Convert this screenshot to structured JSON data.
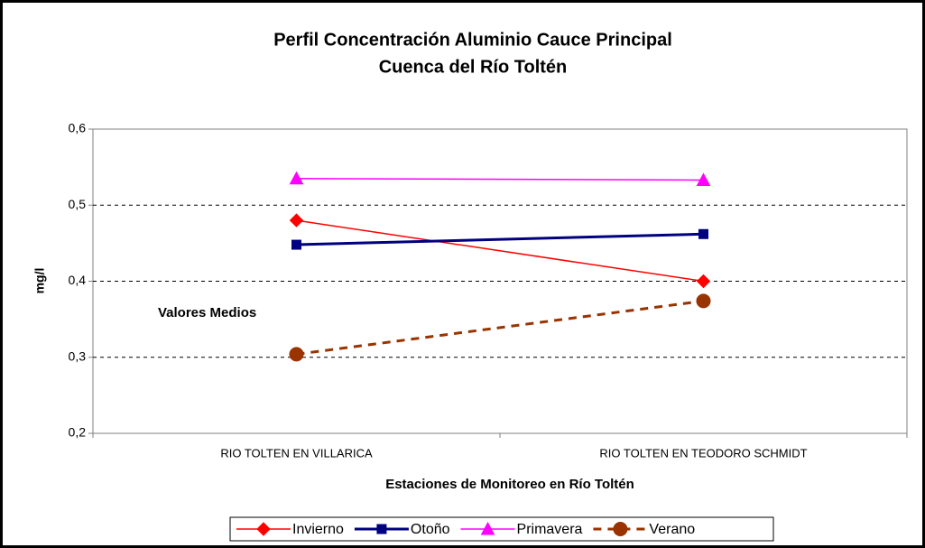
{
  "chart_data": {
    "type": "line",
    "title": "Perfil Concentración Aluminio Cauce Principal",
    "subtitle": "Cuenca del Río Toltén",
    "x_label": "Estaciones de Monitoreo en Río Toltén",
    "y_label": "mg/l",
    "annotation": "Valores Medios",
    "categories": [
      "RIO TOLTEN EN VILLARICA",
      "RIO TOLTEN EN TEODORO SCHMIDT"
    ],
    "ylim": [
      0.2,
      0.6
    ],
    "yticks": [
      {
        "value": 0.2,
        "label": "0,2"
      },
      {
        "value": 0.3,
        "label": "0,3"
      },
      {
        "value": 0.4,
        "label": "0,4"
      },
      {
        "value": 0.5,
        "label": "0,5"
      },
      {
        "value": 0.6,
        "label": "0,6"
      }
    ],
    "grid": true,
    "legend": "bottom",
    "series": [
      {
        "name": "Invierno",
        "color": "#ff0000",
        "marker": "diamond",
        "dashed": false,
        "line_width": 1.5,
        "values": [
          0.48,
          0.4
        ]
      },
      {
        "name": "Otoño",
        "color": "#000080",
        "marker": "square",
        "dashed": false,
        "line_width": 3,
        "values": [
          0.448,
          0.462
        ]
      },
      {
        "name": "Primavera",
        "color": "#ff00ff",
        "marker": "triangle",
        "dashed": false,
        "line_width": 1.5,
        "values": [
          0.535,
          0.533
        ]
      },
      {
        "name": "Verano",
        "color": "#993300",
        "marker": "circle",
        "dashed": true,
        "line_width": 3,
        "values": [
          0.304,
          0.374
        ]
      }
    ]
  }
}
